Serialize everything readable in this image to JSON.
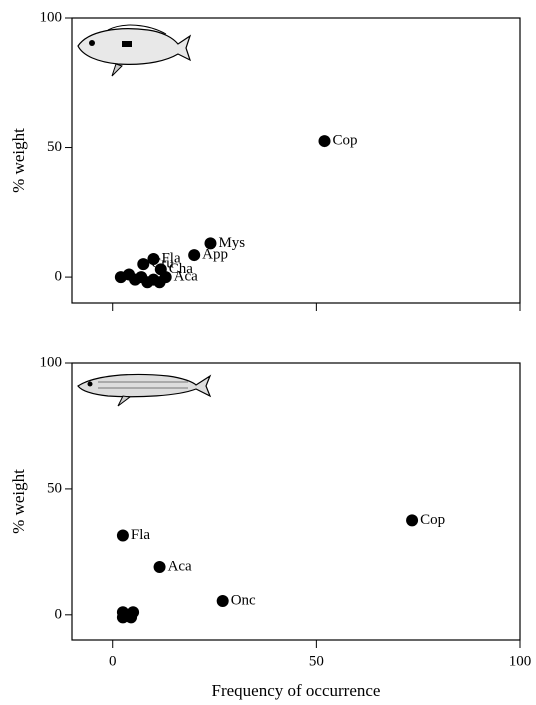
{
  "chart_data": [
    {
      "type": "scatter",
      "ylabel": "% weight",
      "color": "#000000",
      "xlim": [
        -10,
        100
      ],
      "ylim": [
        -10,
        100
      ],
      "xticks": [
        0,
        50,
        100
      ],
      "yticks": [
        0,
        50,
        100
      ],
      "x": [
        52,
        24,
        20,
        10,
        7.5,
        11.8,
        13,
        2,
        4,
        5.5,
        7,
        8.5,
        10,
        11.5
      ],
      "values": [
        52.5,
        13,
        8.5,
        7,
        5,
        3,
        0,
        0,
        1,
        -1,
        0,
        -2,
        -1,
        -2
      ],
      "labels": [
        "Cop",
        "Mys",
        "App",
        "Fla",
        "Cru",
        "Cha",
        "Aca",
        null,
        null,
        null,
        null,
        null,
        null,
        null
      ]
    },
    {
      "type": "scatter",
      "ylabel": "% weight",
      "xlabel": "Frequency of occurrence",
      "color": "#000000",
      "xlim": [
        -10,
        100
      ],
      "ylim": [
        -10,
        100
      ],
      "xticks": [
        0,
        50,
        100
      ],
      "yticks": [
        0,
        50,
        100
      ],
      "x": [
        73.5,
        2.5,
        11.5,
        27,
        2.5,
        5,
        2.5,
        4.5
      ],
      "values": [
        37.5,
        31.5,
        19,
        5.5,
        1,
        1,
        -1,
        -1
      ],
      "labels": [
        "Cop",
        "Fla",
        "Aca",
        "Onc",
        null,
        null,
        null,
        null
      ]
    }
  ]
}
